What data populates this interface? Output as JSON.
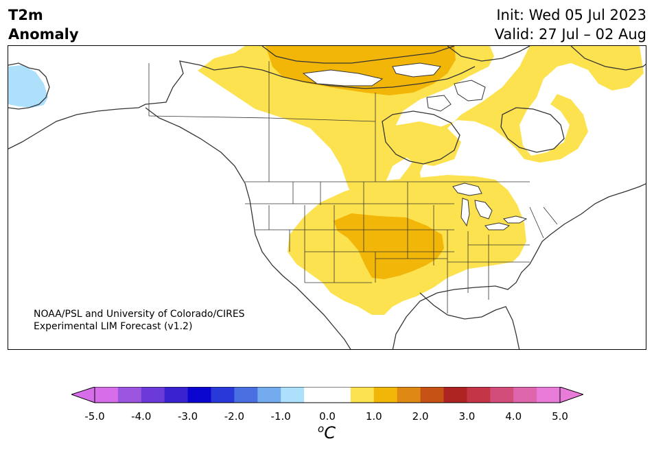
{
  "header": {
    "title_line1": "T2m",
    "title_line2": "Anomaly",
    "init": "Init: Wed 05 Jul 2023",
    "valid": "Valid: 27 Jul – 02 Aug"
  },
  "credit": {
    "line1": "NOAA/PSL and University of Colorado/CIRES",
    "line2": "Experimental LIM Forecast (v1.2)"
  },
  "colorbar": {
    "unit_base": "C",
    "unit_sup": "o",
    "ticks": [
      "-5.0",
      "-4.0",
      "-3.0",
      "-2.0",
      "-1.0",
      "0.0",
      "1.0",
      "2.0",
      "3.0",
      "4.0",
      "5.0"
    ],
    "colors": [
      "#d56ee8",
      "#9c55df",
      "#6c3ad8",
      "#3b22cf",
      "#0a05cf",
      "#2938d8",
      "#4a6fe0",
      "#74aaee",
      "#ade0fa",
      "#ffffff",
      "#ffffff",
      "#fde24f",
      "#f1b608",
      "#de8913",
      "#c65215",
      "#ad2423",
      "#c43547",
      "#d24d7a",
      "#dd66ad",
      "#e97cd9"
    ],
    "extend_low_color": "#d56ee8",
    "extend_high_color": "#e97cd9"
  },
  "map": {
    "region": "North America",
    "variable": "2 m temperature anomaly",
    "anomaly_areas": [
      {
        "region": "Alaska (west coast)",
        "category": "-0.5 to -1.0",
        "color": "#ade0fa"
      },
      {
        "region": "Northern Canada / Hudson Bay",
        "category": "0.5 to 1.0",
        "color": "#fde24f"
      },
      {
        "region": "Northern Canadian islands",
        "category": "1.0 to 1.5",
        "color": "#f1b608"
      },
      {
        "region": "Labrador / Quebec",
        "category": "0.5 to 1.0",
        "color": "#fde24f"
      },
      {
        "region": "Central and Southern US",
        "category": "0.5 to 1.0",
        "color": "#fde24f"
      },
      {
        "region": "Central Plains (KS, OK, MO)",
        "category": "1.0 to 1.5",
        "color": "#f1b608"
      }
    ]
  }
}
